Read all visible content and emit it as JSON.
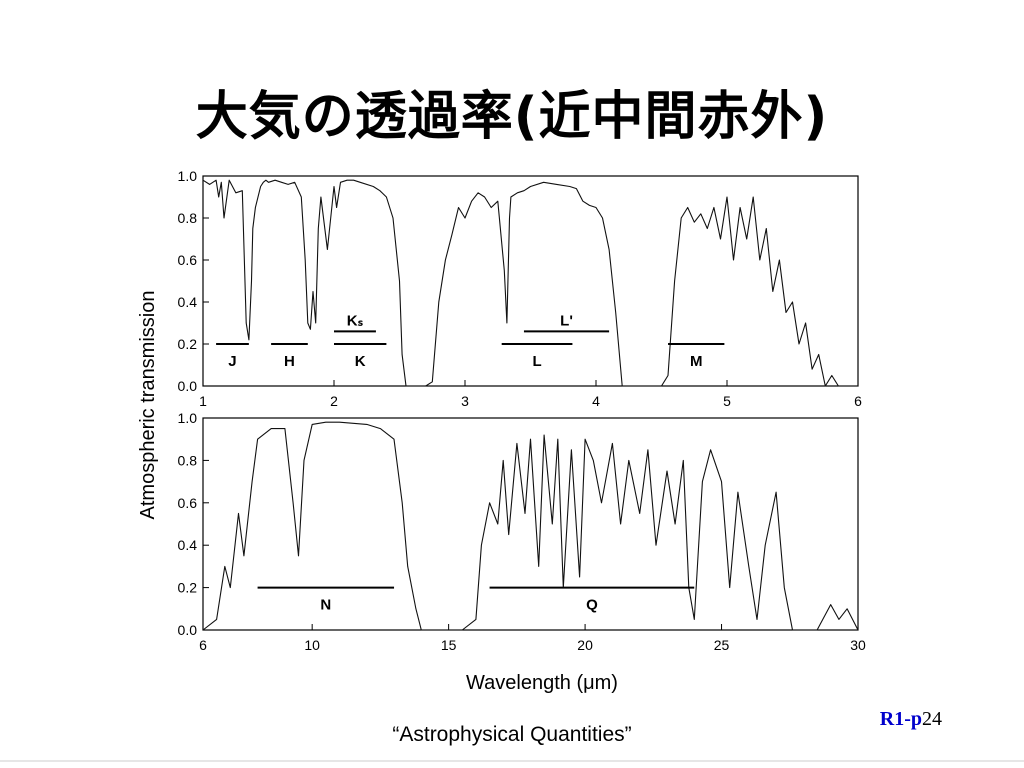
{
  "slide": {
    "title": "大気の透過率(近中間赤外)",
    "caption": "“Astrophysical Quantities”",
    "page_prefix": "R1-p",
    "page_number": "24"
  },
  "chart_data": [
    {
      "type": "line",
      "panel": "top",
      "xlabel": "",
      "ylabel": "Atmospheric transmission",
      "xlim": [
        1,
        6
      ],
      "ylim": [
        0,
        1
      ],
      "x_ticks": [
        "1",
        "2",
        "3",
        "4",
        "5",
        "6"
      ],
      "y_ticks": [
        "0.0",
        "0.2",
        "0.4",
        "0.6",
        "0.8",
        "1.0"
      ],
      "series": [
        {
          "x": [
            1.0,
            1.05,
            1.1,
            1.12,
            1.14,
            1.16,
            1.2,
            1.25,
            1.3,
            1.33,
            1.35,
            1.37,
            1.38,
            1.4,
            1.42,
            1.44,
            1.46,
            1.48,
            1.5,
            1.55,
            1.6,
            1.65,
            1.7,
            1.75,
            1.78,
            1.8,
            1.82,
            1.84,
            1.86,
            1.88,
            1.9,
            1.95,
            2.0,
            2.02,
            2.05,
            2.1,
            2.15,
            2.2,
            2.3,
            2.35,
            2.4,
            2.45,
            2.5,
            2.52,
            2.55,
            2.6,
            2.65,
            2.7,
            2.75,
            2.8,
            2.85,
            2.9,
            2.95,
            3.0,
            3.05,
            3.1,
            3.15,
            3.2,
            3.25,
            3.3,
            3.32,
            3.34,
            3.35,
            3.4,
            3.45,
            3.5,
            3.6,
            3.7,
            3.8,
            3.85,
            3.9,
            3.95,
            4.0,
            4.05,
            4.1,
            4.15,
            4.2,
            4.25,
            4.3,
            4.4,
            4.5,
            4.55,
            4.6,
            4.65,
            4.7,
            4.75,
            4.8,
            4.85,
            4.9,
            4.95,
            5.0,
            5.05,
            5.1,
            5.15,
            5.2,
            5.25,
            5.3,
            5.35,
            5.4,
            5.45,
            5.5,
            5.55,
            5.6,
            5.65,
            5.7,
            5.75,
            5.8,
            5.85,
            5.9,
            6.0
          ],
          "y": [
            0.98,
            0.96,
            0.98,
            0.9,
            0.97,
            0.8,
            0.98,
            0.92,
            0.93,
            0.3,
            0.22,
            0.5,
            0.75,
            0.85,
            0.9,
            0.95,
            0.97,
            0.98,
            0.97,
            0.98,
            0.97,
            0.96,
            0.97,
            0.9,
            0.6,
            0.3,
            0.27,
            0.45,
            0.3,
            0.75,
            0.9,
            0.65,
            0.95,
            0.85,
            0.97,
            0.98,
            0.98,
            0.97,
            0.95,
            0.93,
            0.9,
            0.8,
            0.5,
            0.15,
            0.0,
            0.0,
            0.0,
            0.0,
            0.02,
            0.4,
            0.6,
            0.72,
            0.85,
            0.8,
            0.88,
            0.92,
            0.9,
            0.85,
            0.88,
            0.55,
            0.3,
            0.8,
            0.9,
            0.92,
            0.93,
            0.95,
            0.97,
            0.96,
            0.95,
            0.94,
            0.88,
            0.86,
            0.85,
            0.8,
            0.65,
            0.35,
            0.0,
            0.0,
            0.0,
            0.0,
            0.0,
            0.05,
            0.5,
            0.8,
            0.85,
            0.78,
            0.82,
            0.75,
            0.85,
            0.7,
            0.9,
            0.6,
            0.85,
            0.7,
            0.9,
            0.6,
            0.75,
            0.45,
            0.6,
            0.35,
            0.4,
            0.2,
            0.3,
            0.08,
            0.15,
            0.0,
            0.05,
            0.0,
            0.0,
            0.0
          ]
        }
      ],
      "bands": [
        {
          "label": "J",
          "x_start": 1.1,
          "x_end": 1.35,
          "level": 0.2
        },
        {
          "label": "H",
          "x_start": 1.52,
          "x_end": 1.8,
          "level": 0.2
        },
        {
          "label": "K",
          "x_start": 2.0,
          "x_end": 2.4,
          "level": 0.2
        },
        {
          "label": "Kₛ",
          "x_start": 2.0,
          "x_end": 2.32,
          "level": 0.26
        },
        {
          "label": "L",
          "x_start": 3.28,
          "x_end": 3.82,
          "level": 0.2
        },
        {
          "label": "L'",
          "x_start": 3.45,
          "x_end": 4.1,
          "level": 0.26
        },
        {
          "label": "M",
          "x_start": 4.55,
          "x_end": 4.98,
          "level": 0.2
        }
      ]
    },
    {
      "type": "line",
      "panel": "bottom",
      "xlabel": "Wavelength (μm)",
      "ylabel": "",
      "xlim": [
        6,
        30
      ],
      "ylim": [
        0,
        1
      ],
      "x_ticks": [
        "6",
        "10",
        "15",
        "20",
        "25",
        "30"
      ],
      "y_ticks": [
        "0.0",
        "0.2",
        "0.4",
        "0.6",
        "0.8",
        "1.0"
      ],
      "series": [
        {
          "x": [
            6.0,
            6.5,
            6.8,
            7.0,
            7.3,
            7.5,
            7.8,
            8.0,
            8.5,
            9.0,
            9.3,
            9.5,
            9.7,
            10.0,
            10.5,
            11.0,
            12.0,
            12.5,
            13.0,
            13.3,
            13.5,
            13.8,
            14.0,
            14.5,
            15.0,
            15.5,
            16.0,
            16.2,
            16.5,
            16.8,
            17.0,
            17.2,
            17.5,
            17.8,
            18.0,
            18.3,
            18.5,
            18.8,
            19.0,
            19.2,
            19.5,
            19.8,
            20.0,
            20.3,
            20.6,
            21.0,
            21.3,
            21.6,
            22.0,
            22.3,
            22.6,
            23.0,
            23.3,
            23.6,
            23.8,
            24.0,
            24.3,
            24.6,
            25.0,
            25.3,
            25.6,
            26.0,
            26.3,
            26.6,
            27.0,
            27.3,
            27.6,
            28.0,
            28.5,
            29.0,
            29.3,
            29.6,
            30.0
          ],
          "y": [
            0.0,
            0.05,
            0.3,
            0.2,
            0.55,
            0.35,
            0.7,
            0.9,
            0.95,
            0.95,
            0.6,
            0.35,
            0.8,
            0.97,
            0.98,
            0.98,
            0.97,
            0.95,
            0.9,
            0.6,
            0.3,
            0.1,
            0.0,
            0.0,
            0.0,
            0.0,
            0.05,
            0.4,
            0.6,
            0.5,
            0.8,
            0.45,
            0.88,
            0.55,
            0.9,
            0.3,
            0.92,
            0.5,
            0.9,
            0.2,
            0.85,
            0.25,
            0.9,
            0.8,
            0.6,
            0.88,
            0.5,
            0.8,
            0.55,
            0.85,
            0.4,
            0.75,
            0.5,
            0.8,
            0.2,
            0.05,
            0.7,
            0.85,
            0.7,
            0.2,
            0.65,
            0.3,
            0.05,
            0.4,
            0.65,
            0.2,
            0.0,
            0.0,
            0.0,
            0.12,
            0.05,
            0.1,
            0.0
          ]
        }
      ],
      "bands": [
        {
          "label": "N",
          "x_start": 8.0,
          "x_end": 13.0,
          "level": 0.2
        },
        {
          "label": "Q",
          "x_start": 16.5,
          "x_end": 24.0,
          "level": 0.2
        }
      ]
    }
  ]
}
